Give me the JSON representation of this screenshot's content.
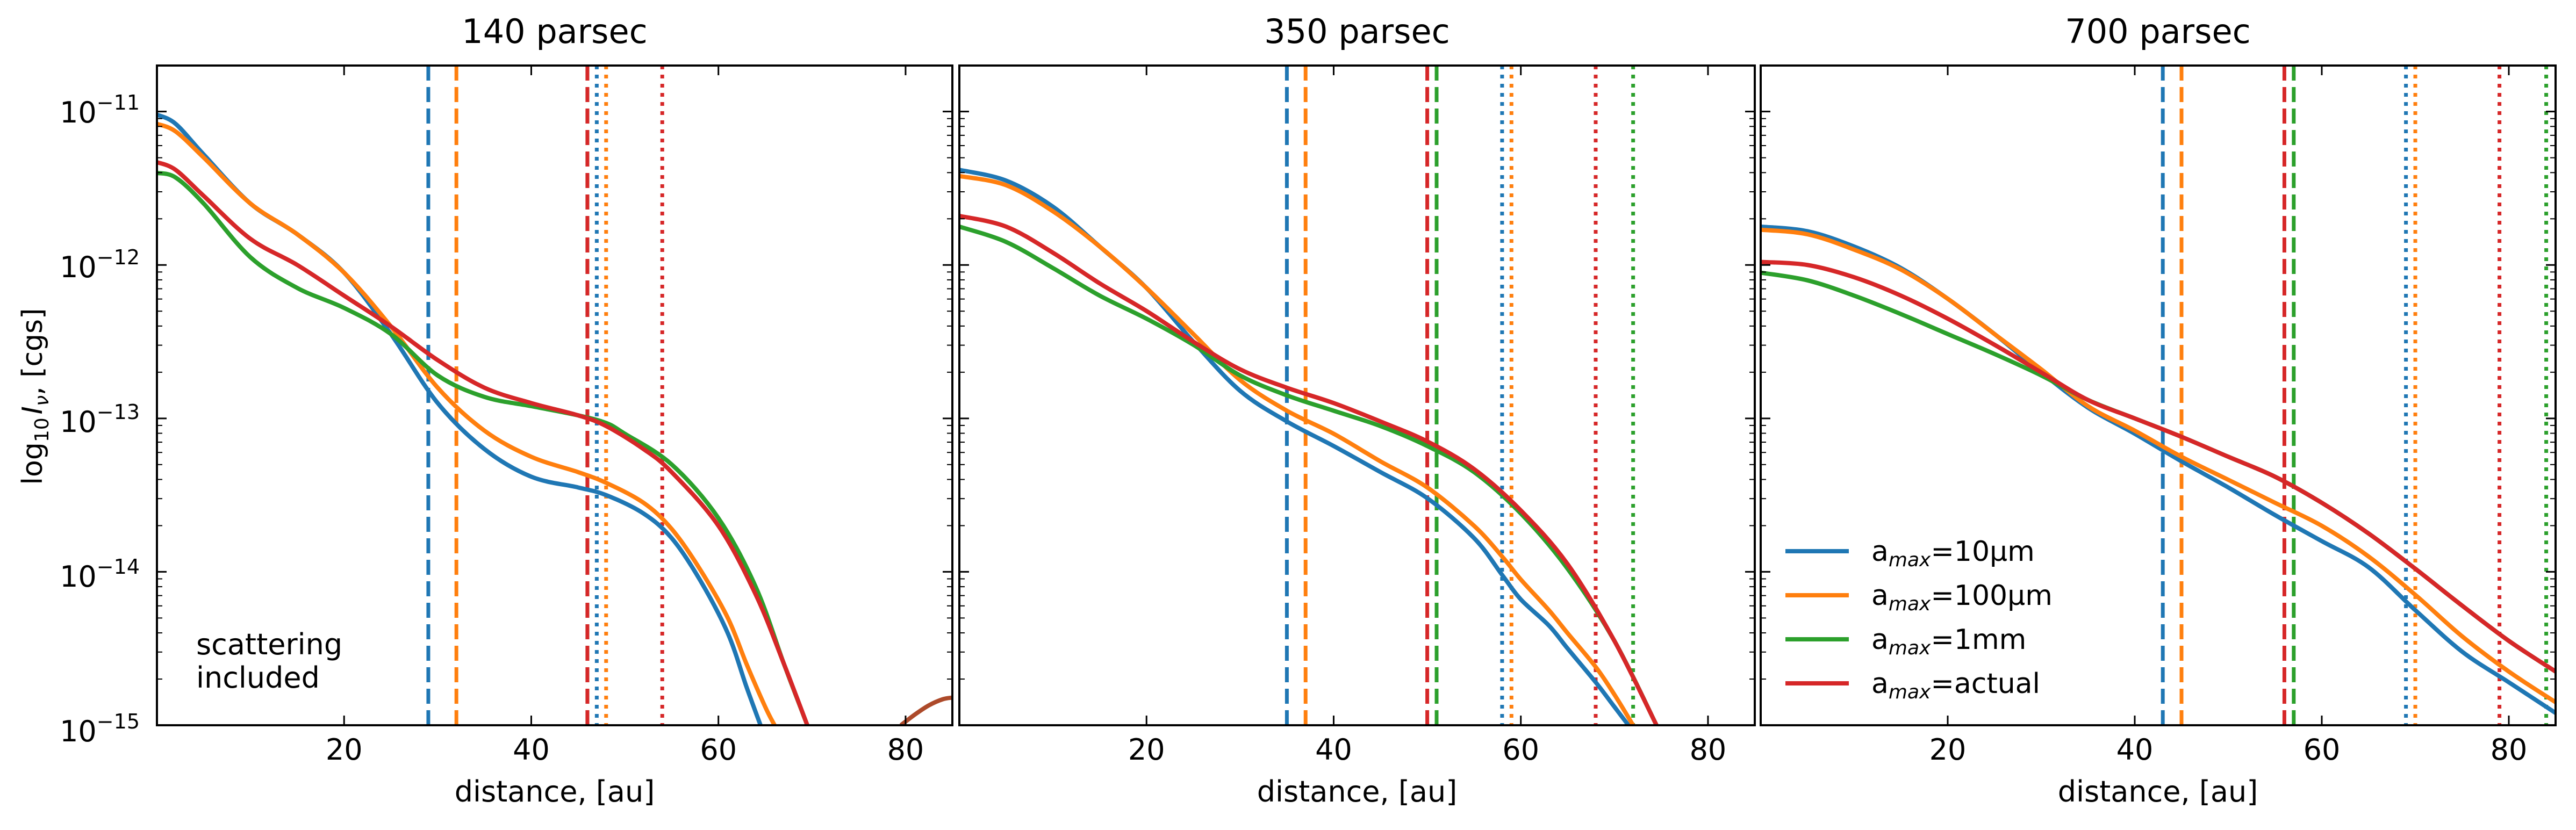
{
  "ylabel_base": "log",
  "ylabel_sub": "10",
  "ylabel_I": "I",
  "ylabel_nu": "ν",
  "ylabel_unit": ", [cgs]",
  "annotation_line1": "scattering",
  "annotation_line2": "included",
  "y_ticks": [
    {
      "base": "10",
      "exp": "−11",
      "value": -11
    },
    {
      "base": "10",
      "exp": "−12",
      "value": -12
    },
    {
      "base": "10",
      "exp": "−13",
      "value": -13
    },
    {
      "base": "10",
      "exp": "−14",
      "value": -14
    },
    {
      "base": "10",
      "exp": "−15",
      "value": -15
    }
  ],
  "legend": [
    {
      "prefix": "a",
      "sub": "max",
      "suffix": "=10μm",
      "color": "#1f77b4"
    },
    {
      "prefix": "a",
      "sub": "max",
      "suffix": "=100μm",
      "color": "#ff7f0e"
    },
    {
      "prefix": "a",
      "sub": "max",
      "suffix": "=1mm",
      "color": "#2ca02c"
    },
    {
      "prefix": "a",
      "sub": "max",
      "suffix": "=actual",
      "color": "#d62728"
    }
  ],
  "chart_data": [
    {
      "type": "line",
      "title": "140 parsec",
      "xlabel": "distance, [au]",
      "ylabel": "log10 Iν, [cgs]",
      "xlim": [
        0,
        85
      ],
      "ylim": [
        -15,
        -10.7
      ],
      "yscale": "log",
      "x_ticks": [
        20,
        40,
        60,
        80
      ],
      "grid": false,
      "vlines_dashed": [
        {
          "x": 29,
          "color": "#1f77b4"
        },
        {
          "x": 32,
          "color": "#ff7f0e"
        },
        {
          "x": 46,
          "color": "#2ca02c"
        },
        {
          "x": 46,
          "color": "#d62728"
        }
      ],
      "vlines_dotted": [
        {
          "x": 47,
          "color": "#1f77b4"
        },
        {
          "x": 48,
          "color": "#ff7f0e"
        },
        {
          "x": 54,
          "color": "#d62728"
        }
      ],
      "series": [
        {
          "color": "#1f77b4",
          "x": [
            0,
            2,
            5,
            10,
            15,
            20,
            25,
            30,
            35,
            40,
            45,
            48,
            52,
            55,
            58,
            61,
            63,
            64.5
          ],
          "y": [
            -11.02,
            -11.08,
            -11.28,
            -11.6,
            -11.8,
            -12.05,
            -12.45,
            -12.9,
            -13.2,
            -13.38,
            -13.45,
            -13.5,
            -13.62,
            -13.78,
            -14.05,
            -14.4,
            -14.75,
            -15
          ]
        },
        {
          "color": "#ff7f0e",
          "x": [
            0,
            2,
            5,
            10,
            15,
            20,
            25,
            30,
            35,
            40,
            45,
            48,
            52,
            55,
            58,
            61,
            63,
            65,
            66
          ],
          "y": [
            -11.08,
            -11.13,
            -11.3,
            -11.6,
            -11.8,
            -12.05,
            -12.4,
            -12.8,
            -13.08,
            -13.25,
            -13.35,
            -13.42,
            -13.55,
            -13.72,
            -13.98,
            -14.3,
            -14.6,
            -14.88,
            -15
          ]
        },
        {
          "color": "#2ca02c",
          "x": [
            0,
            2,
            5,
            10,
            15,
            20,
            25,
            30,
            35,
            40,
            45,
            48,
            50,
            55,
            60,
            64,
            67,
            69.5
          ],
          "y": [
            -11.4,
            -11.43,
            -11.6,
            -11.95,
            -12.15,
            -12.28,
            -12.45,
            -12.72,
            -12.86,
            -12.92,
            -12.98,
            -13.03,
            -13.1,
            -13.3,
            -13.65,
            -14.1,
            -14.6,
            -15
          ]
        },
        {
          "color": "#d62728",
          "x": [
            0,
            2,
            5,
            10,
            15,
            20,
            25,
            30,
            35,
            40,
            45,
            48,
            52,
            55,
            60,
            64,
            67,
            69.5
          ],
          "y": [
            -11.33,
            -11.38,
            -11.55,
            -11.83,
            -12.0,
            -12.2,
            -12.4,
            -12.62,
            -12.8,
            -12.9,
            -12.98,
            -13.05,
            -13.2,
            -13.35,
            -13.7,
            -14.15,
            -14.6,
            -15
          ]
        },
        {
          "color": "#ad4a2a",
          "x": [
            79.5,
            81,
            82.5,
            84,
            85
          ],
          "y": [
            -15,
            -14.93,
            -14.87,
            -14.83,
            -14.82
          ]
        }
      ]
    },
    {
      "type": "line",
      "title": "350 parsec",
      "xlabel": "distance, [au]",
      "xlim": [
        0,
        85
      ],
      "ylim": [
        -15,
        -10.7
      ],
      "yscale": "log",
      "x_ticks": [
        20,
        40,
        60,
        80
      ],
      "grid": false,
      "vlines_dashed": [
        {
          "x": 35,
          "color": "#1f77b4"
        },
        {
          "x": 37,
          "color": "#ff7f0e"
        },
        {
          "x": 50,
          "color": "#d62728"
        },
        {
          "x": 51,
          "color": "#2ca02c"
        }
      ],
      "vlines_dotted": [
        {
          "x": 58,
          "color": "#1f77b4"
        },
        {
          "x": 59,
          "color": "#ff7f0e"
        },
        {
          "x": 68,
          "color": "#d62728"
        },
        {
          "x": 72,
          "color": "#2ca02c"
        }
      ],
      "series": [
        {
          "color": "#1f77b4",
          "x": [
            0,
            5,
            10,
            15,
            20,
            25,
            30,
            35,
            40,
            45,
            50,
            55,
            58,
            60,
            63,
            65,
            68,
            70,
            71.5
          ],
          "y": [
            -11.38,
            -11.45,
            -11.62,
            -11.88,
            -12.15,
            -12.5,
            -12.82,
            -13.02,
            -13.18,
            -13.35,
            -13.52,
            -13.78,
            -14.02,
            -14.18,
            -14.35,
            -14.5,
            -14.72,
            -14.88,
            -15
          ]
        },
        {
          "color": "#ff7f0e",
          "x": [
            0,
            5,
            10,
            15,
            20,
            25,
            30,
            35,
            40,
            45,
            50,
            55,
            58,
            60,
            63,
            65,
            68,
            70,
            72
          ],
          "y": [
            -11.42,
            -11.48,
            -11.65,
            -11.88,
            -12.15,
            -12.45,
            -12.75,
            -12.95,
            -13.1,
            -13.28,
            -13.45,
            -13.7,
            -13.9,
            -14.05,
            -14.25,
            -14.4,
            -14.62,
            -14.8,
            -15
          ]
        },
        {
          "color": "#2ca02c",
          "x": [
            0,
            5,
            10,
            15,
            20,
            25,
            30,
            35,
            40,
            45,
            50,
            55,
            60,
            65,
            70,
            74.5
          ],
          "y": [
            -11.75,
            -11.85,
            -12.02,
            -12.2,
            -12.35,
            -12.52,
            -12.72,
            -12.85,
            -12.95,
            -13.05,
            -13.18,
            -13.35,
            -13.62,
            -13.98,
            -14.45,
            -15
          ]
        },
        {
          "color": "#d62728",
          "x": [
            0,
            5,
            10,
            15,
            20,
            25,
            30,
            35,
            40,
            45,
            50,
            55,
            60,
            65,
            70,
            74.5
          ],
          "y": [
            -11.68,
            -11.75,
            -11.92,
            -12.12,
            -12.3,
            -12.5,
            -12.68,
            -12.8,
            -12.9,
            -13.02,
            -13.15,
            -13.33,
            -13.6,
            -13.95,
            -14.45,
            -15
          ]
        }
      ]
    },
    {
      "type": "line",
      "title": "700 parsec",
      "xlabel": "distance, [au]",
      "xlim": [
        0,
        85
      ],
      "ylim": [
        -15,
        -10.7
      ],
      "yscale": "log",
      "x_ticks": [
        20,
        40,
        60,
        80
      ],
      "grid": false,
      "legend_position": "lower-left",
      "vlines_dashed": [
        {
          "x": 43,
          "color": "#1f77b4"
        },
        {
          "x": 45,
          "color": "#ff7f0e"
        },
        {
          "x": 56,
          "color": "#d62728"
        },
        {
          "x": 57,
          "color": "#2ca02c"
        }
      ],
      "vlines_dotted": [
        {
          "x": 69,
          "color": "#1f77b4"
        },
        {
          "x": 70,
          "color": "#ff7f0e"
        },
        {
          "x": 79,
          "color": "#d62728"
        },
        {
          "x": 84,
          "color": "#2ca02c"
        }
      ],
      "series": [
        {
          "color": "#1f77b4",
          "x": [
            0,
            5,
            10,
            15,
            20,
            25,
            30,
            35,
            40,
            45,
            50,
            55,
            60,
            65,
            70,
            75,
            80,
            85
          ],
          "y": [
            -11.75,
            -11.78,
            -11.88,
            -12.02,
            -12.22,
            -12.45,
            -12.7,
            -12.93,
            -13.1,
            -13.28,
            -13.45,
            -13.63,
            -13.8,
            -13.97,
            -14.25,
            -14.52,
            -14.72,
            -14.92
          ]
        },
        {
          "color": "#ff7f0e",
          "x": [
            0,
            5,
            10,
            15,
            20,
            25,
            30,
            35,
            40,
            45,
            50,
            55,
            60,
            65,
            70,
            75,
            80,
            85
          ],
          "y": [
            -11.77,
            -11.8,
            -11.9,
            -12.03,
            -12.22,
            -12.45,
            -12.68,
            -12.92,
            -13.08,
            -13.25,
            -13.4,
            -13.55,
            -13.7,
            -13.9,
            -14.15,
            -14.42,
            -14.65,
            -14.85
          ]
        },
        {
          "color": "#2ca02c",
          "x": [
            0,
            5,
            10,
            15,
            20,
            25,
            30,
            35,
            40,
            45,
            50,
            55,
            60,
            65,
            70,
            75,
            80,
            85
          ],
          "y": [
            -12.05,
            -12.1,
            -12.2,
            -12.32,
            -12.45,
            -12.58,
            -12.72,
            -12.88,
            -13.0,
            -13.12,
            -13.25,
            -13.38,
            -13.55,
            -13.75,
            -13.98,
            -14.22,
            -14.45,
            -14.65
          ]
        },
        {
          "color": "#d62728",
          "x": [
            0,
            5,
            10,
            15,
            20,
            25,
            30,
            35,
            40,
            45,
            50,
            55,
            60,
            65,
            70,
            75,
            80,
            85
          ],
          "y": [
            -11.98,
            -12.0,
            -12.08,
            -12.2,
            -12.35,
            -12.52,
            -12.7,
            -12.88,
            -13.0,
            -13.12,
            -13.25,
            -13.38,
            -13.55,
            -13.75,
            -13.98,
            -14.22,
            -14.45,
            -14.65
          ]
        }
      ]
    }
  ]
}
